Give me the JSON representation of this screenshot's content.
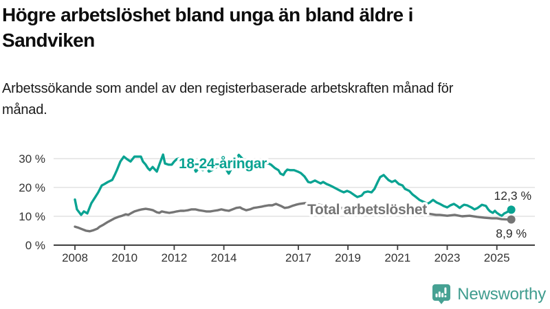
{
  "chart_data": {
    "type": "line",
    "title": "Högre arbetslöshet bland unga än bland äldre i Sandviken",
    "subtitle": "Arbetssökande som andel av den registerbaserade arbetskraften månad för månad.",
    "unit": "%",
    "grid": "horizontal",
    "legend": "inline-labels",
    "x_axis": {
      "range": [
        2008,
        2025.8
      ],
      "ticks": [
        2008,
        2010,
        2012,
        2014,
        2017,
        2019,
        2021,
        2023,
        2025
      ],
      "tick_labels": [
        "2008",
        "2010",
        "2012",
        "2014",
        "2017",
        "2019",
        "2021",
        "2023",
        "2025"
      ]
    },
    "y_axis": {
      "range": [
        0,
        33
      ],
      "tick_values": [
        0,
        10,
        20,
        30
      ],
      "tick_labels": [
        "0 %",
        "10 %",
        "20 %",
        "30 %"
      ]
    },
    "series": [
      {
        "name": "18-24-åringar",
        "color": "#0aa392",
        "end_value": 12.3,
        "end_label": "12,3 %",
        "points": [
          [
            2008.0,
            15.8
          ],
          [
            2008.08,
            12.4
          ],
          [
            2008.25,
            10.5
          ],
          [
            2008.36,
            11.7
          ],
          [
            2008.5,
            11.0
          ],
          [
            2008.66,
            14.5
          ],
          [
            2008.8,
            16.4
          ],
          [
            2008.94,
            18.3
          ],
          [
            2009.08,
            20.7
          ],
          [
            2009.19,
            21.2
          ],
          [
            2009.33,
            21.9
          ],
          [
            2009.5,
            22.6
          ],
          [
            2009.6,
            24.3
          ],
          [
            2009.69,
            26.0
          ],
          [
            2009.83,
            29.0
          ],
          [
            2009.97,
            30.7
          ],
          [
            2010.1,
            29.8
          ],
          [
            2010.24,
            29.0
          ],
          [
            2010.4,
            30.7
          ],
          [
            2010.66,
            30.7
          ],
          [
            2010.74,
            29.0
          ],
          [
            2010.85,
            27.9
          ],
          [
            2010.94,
            26.7
          ],
          [
            2011.02,
            26.0
          ],
          [
            2011.13,
            27.1
          ],
          [
            2011.3,
            25.5
          ],
          [
            2011.4,
            27.9
          ],
          [
            2011.55,
            31.4
          ],
          [
            2011.63,
            28.3
          ],
          [
            2011.77,
            27.9
          ],
          [
            2011.9,
            27.9
          ],
          [
            2012.0,
            29.0
          ],
          [
            2012.1,
            29.8
          ],
          [
            2012.24,
            30.2
          ],
          [
            2012.38,
            29.8
          ],
          [
            2012.5,
            29.0
          ],
          [
            2012.65,
            29.8
          ],
          [
            2012.87,
            25.5
          ],
          [
            2013.0,
            26.7
          ],
          [
            2013.15,
            26.0
          ],
          [
            2013.3,
            26.9
          ],
          [
            2013.4,
            25.5
          ],
          [
            2013.57,
            26.2
          ],
          [
            2013.7,
            27.1
          ],
          [
            2013.85,
            27.9
          ],
          [
            2014.0,
            27.5
          ],
          [
            2014.2,
            24.8
          ],
          [
            2014.4,
            28.0
          ],
          [
            2014.6,
            31.3
          ],
          [
            2014.8,
            29.5
          ],
          [
            2015.0,
            28.5
          ],
          [
            2015.2,
            28.0
          ],
          [
            2015.4,
            28.8
          ],
          [
            2015.6,
            28.2
          ],
          [
            2015.8,
            28.3
          ],
          [
            2015.9,
            27.9
          ],
          [
            2016.06,
            26.7
          ],
          [
            2016.2,
            26.0
          ],
          [
            2016.28,
            24.8
          ],
          [
            2016.4,
            24.3
          ],
          [
            2016.48,
            25.5
          ],
          [
            2016.56,
            26.2
          ],
          [
            2016.67,
            26.0
          ],
          [
            2016.83,
            26.0
          ],
          [
            2016.98,
            25.5
          ],
          [
            2017.1,
            25.0
          ],
          [
            2017.25,
            23.8
          ],
          [
            2017.4,
            21.9
          ],
          [
            2017.5,
            21.7
          ],
          [
            2017.67,
            22.4
          ],
          [
            2017.78,
            21.9
          ],
          [
            2017.9,
            21.4
          ],
          [
            2018.0,
            21.9
          ],
          [
            2018.14,
            21.2
          ],
          [
            2018.28,
            20.7
          ],
          [
            2018.4,
            20.2
          ],
          [
            2018.55,
            19.5
          ],
          [
            2018.7,
            18.8
          ],
          [
            2018.83,
            18.3
          ],
          [
            2018.97,
            18.8
          ],
          [
            2019.1,
            18.3
          ],
          [
            2019.25,
            17.4
          ],
          [
            2019.38,
            16.7
          ],
          [
            2019.55,
            17.2
          ],
          [
            2019.66,
            18.3
          ],
          [
            2019.8,
            18.6
          ],
          [
            2019.95,
            18.3
          ],
          [
            2020.07,
            19.5
          ],
          [
            2020.2,
            21.9
          ],
          [
            2020.3,
            23.6
          ],
          [
            2020.44,
            24.3
          ],
          [
            2020.63,
            22.6
          ],
          [
            2020.77,
            21.9
          ],
          [
            2020.9,
            22.4
          ],
          [
            2021.05,
            21.2
          ],
          [
            2021.2,
            20.7
          ],
          [
            2021.3,
            19.5
          ],
          [
            2021.47,
            18.8
          ],
          [
            2021.6,
            17.6
          ],
          [
            2021.74,
            16.7
          ],
          [
            2021.88,
            15.7
          ],
          [
            2022.0,
            15.2
          ],
          [
            2022.1,
            14.8
          ],
          [
            2022.2,
            14.3
          ],
          [
            2022.3,
            14.8
          ],
          [
            2022.43,
            15.7
          ],
          [
            2022.57,
            14.8
          ],
          [
            2022.7,
            14.3
          ],
          [
            2022.85,
            13.6
          ],
          [
            2023.0,
            13.1
          ],
          [
            2023.13,
            13.8
          ],
          [
            2023.27,
            14.3
          ],
          [
            2023.4,
            13.6
          ],
          [
            2023.5,
            12.9
          ],
          [
            2023.6,
            13.6
          ],
          [
            2023.68,
            14.0
          ],
          [
            2023.8,
            13.8
          ],
          [
            2023.97,
            13.1
          ],
          [
            2024.1,
            12.4
          ],
          [
            2024.23,
            12.9
          ],
          [
            2024.37,
            13.8
          ],
          [
            2024.4,
            14.0
          ],
          [
            2024.56,
            13.6
          ],
          [
            2024.65,
            12.4
          ],
          [
            2024.73,
            11.7
          ],
          [
            2024.84,
            11.2
          ],
          [
            2024.92,
            11.9
          ],
          [
            2025.0,
            11.2
          ],
          [
            2025.12,
            10.5
          ],
          [
            2025.2,
            10.2
          ],
          [
            2025.3,
            11.0
          ],
          [
            2025.4,
            11.4
          ],
          [
            2025.48,
            11.9
          ],
          [
            2025.58,
            12.3
          ]
        ]
      },
      {
        "name": "Total arbetslöshet",
        "color": "#757575",
        "end_value": 8.9,
        "end_label": "8,9 %",
        "points": [
          [
            2008.0,
            6.4
          ],
          [
            2008.15,
            6.0
          ],
          [
            2008.3,
            5.5
          ],
          [
            2008.45,
            5.0
          ],
          [
            2008.6,
            4.8
          ],
          [
            2008.75,
            5.2
          ],
          [
            2008.9,
            5.7
          ],
          [
            2009.0,
            6.4
          ],
          [
            2009.15,
            7.1
          ],
          [
            2009.3,
            7.9
          ],
          [
            2009.45,
            8.6
          ],
          [
            2009.6,
            9.3
          ],
          [
            2009.75,
            9.8
          ],
          [
            2009.9,
            10.2
          ],
          [
            2010.05,
            10.7
          ],
          [
            2010.15,
            10.5
          ],
          [
            2010.25,
            11.0
          ],
          [
            2010.4,
            11.7
          ],
          [
            2010.55,
            12.1
          ],
          [
            2010.7,
            12.4
          ],
          [
            2010.85,
            12.6
          ],
          [
            2011.0,
            12.4
          ],
          [
            2011.15,
            12.1
          ],
          [
            2011.3,
            11.4
          ],
          [
            2011.4,
            11.2
          ],
          [
            2011.5,
            11.7
          ],
          [
            2011.65,
            11.4
          ],
          [
            2011.8,
            11.2
          ],
          [
            2011.95,
            11.4
          ],
          [
            2012.1,
            11.7
          ],
          [
            2012.25,
            11.9
          ],
          [
            2012.4,
            11.9
          ],
          [
            2012.55,
            12.1
          ],
          [
            2012.7,
            12.4
          ],
          [
            2012.85,
            12.4
          ],
          [
            2013.0,
            12.1
          ],
          [
            2013.15,
            11.9
          ],
          [
            2013.3,
            11.7
          ],
          [
            2013.45,
            11.7
          ],
          [
            2013.6,
            11.9
          ],
          [
            2013.75,
            12.1
          ],
          [
            2013.9,
            12.4
          ],
          [
            2014.05,
            12.1
          ],
          [
            2014.2,
            11.9
          ],
          [
            2014.35,
            12.4
          ],
          [
            2014.5,
            12.9
          ],
          [
            2014.65,
            13.1
          ],
          [
            2014.75,
            12.6
          ],
          [
            2014.9,
            12.1
          ],
          [
            2015.05,
            12.4
          ],
          [
            2015.2,
            12.9
          ],
          [
            2015.35,
            13.1
          ],
          [
            2015.5,
            13.3
          ],
          [
            2015.65,
            13.6
          ],
          [
            2015.8,
            13.8
          ],
          [
            2015.95,
            13.8
          ],
          [
            2016.1,
            14.3
          ],
          [
            2016.3,
            13.6
          ],
          [
            2016.45,
            12.9
          ],
          [
            2016.6,
            13.1
          ],
          [
            2016.75,
            13.6
          ],
          [
            2016.9,
            14.0
          ],
          [
            2017.05,
            14.3
          ],
          [
            2017.3,
            14.6
          ],
          [
            2017.6,
            14.3
          ],
          [
            2018.0,
            13.8
          ],
          [
            2018.5,
            13.1
          ],
          [
            2019.0,
            12.6
          ],
          [
            2019.5,
            12.1
          ],
          [
            2020.0,
            12.4
          ],
          [
            2020.4,
            13.3
          ],
          [
            2020.8,
            13.1
          ],
          [
            2021.2,
            12.4
          ],
          [
            2021.6,
            11.7
          ],
          [
            2022.0,
            11.2
          ],
          [
            2022.4,
            10.7
          ],
          [
            2022.55,
            10.5
          ],
          [
            2022.7,
            10.5
          ],
          [
            2023.0,
            10.2
          ],
          [
            2023.3,
            10.5
          ],
          [
            2023.6,
            10.0
          ],
          [
            2023.9,
            10.2
          ],
          [
            2024.2,
            9.8
          ],
          [
            2024.5,
            9.5
          ],
          [
            2024.8,
            9.3
          ],
          [
            2025.0,
            9.3
          ],
          [
            2025.2,
            9.0
          ],
          [
            2025.4,
            8.9
          ],
          [
            2025.58,
            8.9
          ]
        ]
      }
    ]
  },
  "brand": {
    "name": "Newsworthy",
    "wordmark_color": "#3f9c8e",
    "icon_color": "#46a193",
    "icon": "bar-chart-speech-bubble"
  },
  "colors": {
    "grid": "#dcdcdc",
    "axis": "#3d3d3d",
    "tick_text": "#333333",
    "end_label_text": "#2b2b2b"
  }
}
